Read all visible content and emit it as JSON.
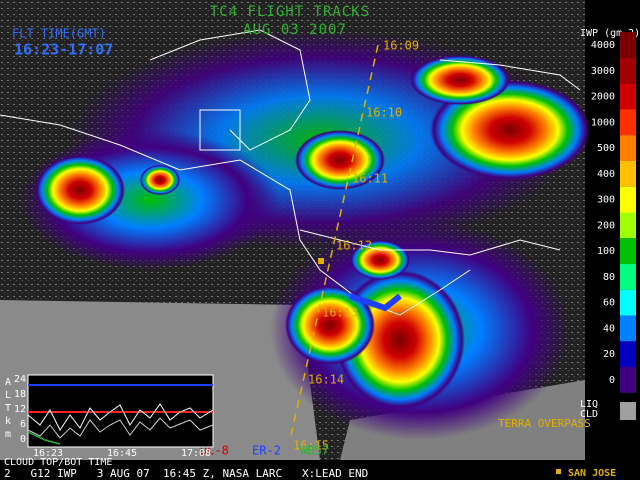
{
  "header": {
    "title": "TC4 FLIGHT TRACKS",
    "date": "AUG 03 2007",
    "flight_time_label": "FLT TIME(GMT)",
    "flight_time": "16:23-17:07"
  },
  "track_times": [
    "16:09",
    "16:10",
    "16:11",
    "16:12",
    "16:13",
    "16:14",
    "16:15"
  ],
  "aircraft": [
    "DC-8",
    "ER-2",
    "WB57"
  ],
  "terra_overpass": "TERRA OVERPASS",
  "colorbar": {
    "title": "IWP (gm-2)",
    "levels": [
      "4000",
      "3000",
      "2000",
      "1000",
      "500",
      "400",
      "300",
      "200",
      "100",
      "80",
      "60",
      "40",
      "20",
      "0"
    ],
    "liq": "LIQ",
    "cld": "CLD"
  },
  "inset": {
    "axis_label": [
      "A",
      "L",
      "T",
      "k",
      "m"
    ],
    "yticks": [
      "24",
      "18",
      "12",
      "6",
      "0"
    ],
    "xticks": [
      "16:23",
      "16:45",
      "17:08"
    ],
    "caption": "CLOUD TOP/BOT TIME"
  },
  "footer": {
    "status": "2   G12 IWP   3 AUG 07  16:45 Z, NASA LARC   X:LEAD END",
    "location": "SAN JOSE"
  }
}
